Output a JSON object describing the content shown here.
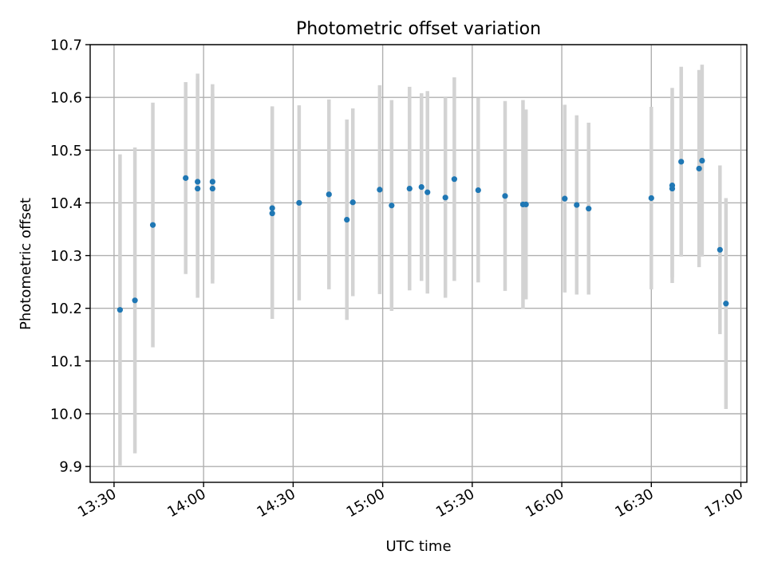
{
  "chart_data": {
    "type": "scatter",
    "title": "Photometric offset variation",
    "xlabel": "UTC time",
    "ylabel": "Photometric offset",
    "x_ticks": [
      "13:30",
      "14:00",
      "14:30",
      "15:00",
      "15:30",
      "16:00",
      "16:30",
      "17:00"
    ],
    "y_ticks": [
      "9.9",
      "10.0",
      "10.1",
      "10.2",
      "10.3",
      "10.4",
      "10.5",
      "10.6",
      "10.7"
    ],
    "xlim": [
      "13:22",
      "17:02"
    ],
    "ylim": [
      9.87,
      10.7
    ],
    "grid": true,
    "colors": {
      "marker": "#1f77b4",
      "errorbar": "#d3d3d3",
      "grid": "#b0b0b0"
    },
    "series": [
      {
        "points": [
          {
            "x": "13:32",
            "y": 10.197,
            "err": 0.295
          },
          {
            "x": "13:37",
            "y": 10.215,
            "err": 0.29
          },
          {
            "x": "13:43",
            "y": 10.358,
            "err": 0.232
          },
          {
            "x": "13:54",
            "y": 10.447,
            "err": 0.182
          },
          {
            "x": "13:58",
            "y": 10.44,
            "err": 0.205
          },
          {
            "x": "13:58",
            "y": 10.427,
            "err": 0.207
          },
          {
            "x": "14:03",
            "y": 10.44,
            "err": 0.185
          },
          {
            "x": "14:03",
            "y": 10.427,
            "err": 0.18
          },
          {
            "x": "14:23",
            "y": 10.39,
            "err": 0.193
          },
          {
            "x": "14:23",
            "y": 10.38,
            "err": 0.2
          },
          {
            "x": "14:32",
            "y": 10.4,
            "err": 0.185
          },
          {
            "x": "14:42",
            "y": 10.416,
            "err": 0.18
          },
          {
            "x": "14:48",
            "y": 10.368,
            "err": 0.19
          },
          {
            "x": "14:50",
            "y": 10.401,
            "err": 0.178
          },
          {
            "x": "14:59",
            "y": 10.425,
            "err": 0.198
          },
          {
            "x": "15:03",
            "y": 10.395,
            "err": 0.2
          },
          {
            "x": "15:09",
            "y": 10.427,
            "err": 0.193
          },
          {
            "x": "15:13",
            "y": 10.43,
            "err": 0.178
          },
          {
            "x": "15:15",
            "y": 10.42,
            "err": 0.192
          },
          {
            "x": "15:21",
            "y": 10.41,
            "err": 0.19
          },
          {
            "x": "15:24",
            "y": 10.445,
            "err": 0.193
          },
          {
            "x": "15:32",
            "y": 10.424,
            "err": 0.175
          },
          {
            "x": "15:41",
            "y": 10.413,
            "err": 0.18
          },
          {
            "x": "15:47",
            "y": 10.397,
            "err": 0.198
          },
          {
            "x": "15:48",
            "y": 10.397,
            "err": 0.18
          },
          {
            "x": "16:01",
            "y": 10.408,
            "err": 0.178
          },
          {
            "x": "16:05",
            "y": 10.396,
            "err": 0.17
          },
          {
            "x": "16:09",
            "y": 10.389,
            "err": 0.163
          },
          {
            "x": "16:30",
            "y": 10.409,
            "err": 0.173
          },
          {
            "x": "16:37",
            "y": 10.433,
            "err": 0.185
          },
          {
            "x": "16:37",
            "y": 10.427,
            "err": 0.168
          },
          {
            "x": "16:40",
            "y": 10.478,
            "err": 0.18
          },
          {
            "x": "16:46",
            "y": 10.465,
            "err": 0.187
          },
          {
            "x": "16:47",
            "y": 10.48,
            "err": 0.182
          },
          {
            "x": "16:53",
            "y": 10.311,
            "err": 0.16
          },
          {
            "x": "16:55",
            "y": 10.209,
            "err": 0.2
          }
        ]
      }
    ]
  }
}
